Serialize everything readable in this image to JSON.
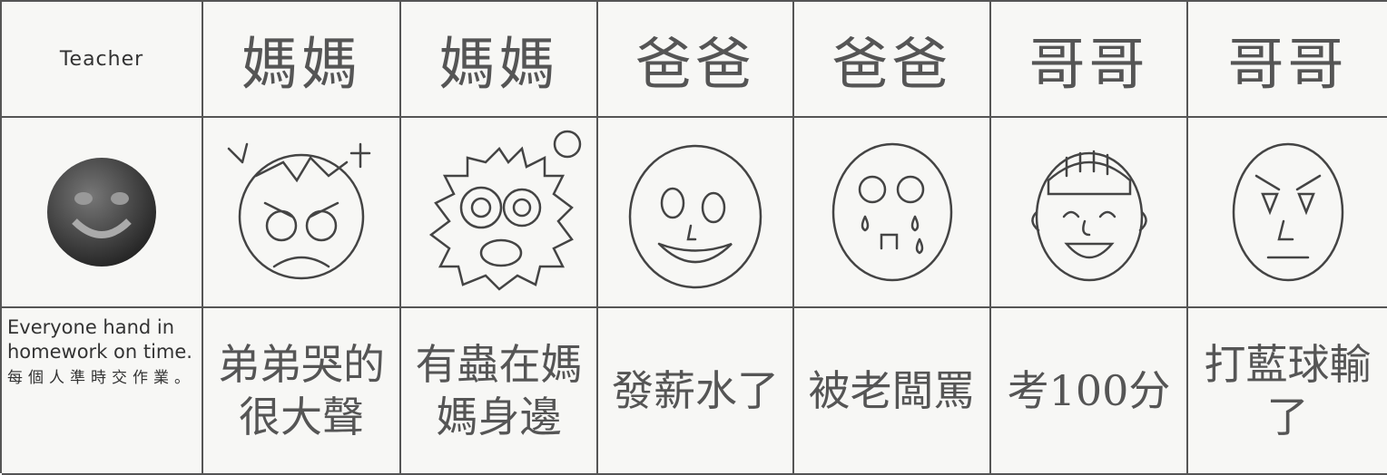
{
  "table": {
    "header": [
      "Teacher",
      "媽媽",
      "媽媽",
      "爸爸",
      "爸爸",
      "哥哥",
      "哥哥"
    ],
    "captions": [
      "Everyone hand in homework on time.",
      "弟弟哭的很大聲",
      "有蟲在媽媽身邊",
      "發薪水了",
      "被老闆罵",
      "考100分",
      "打藍球輸了"
    ],
    "teacher_note_chinese": "每個人準時交作業。"
  }
}
